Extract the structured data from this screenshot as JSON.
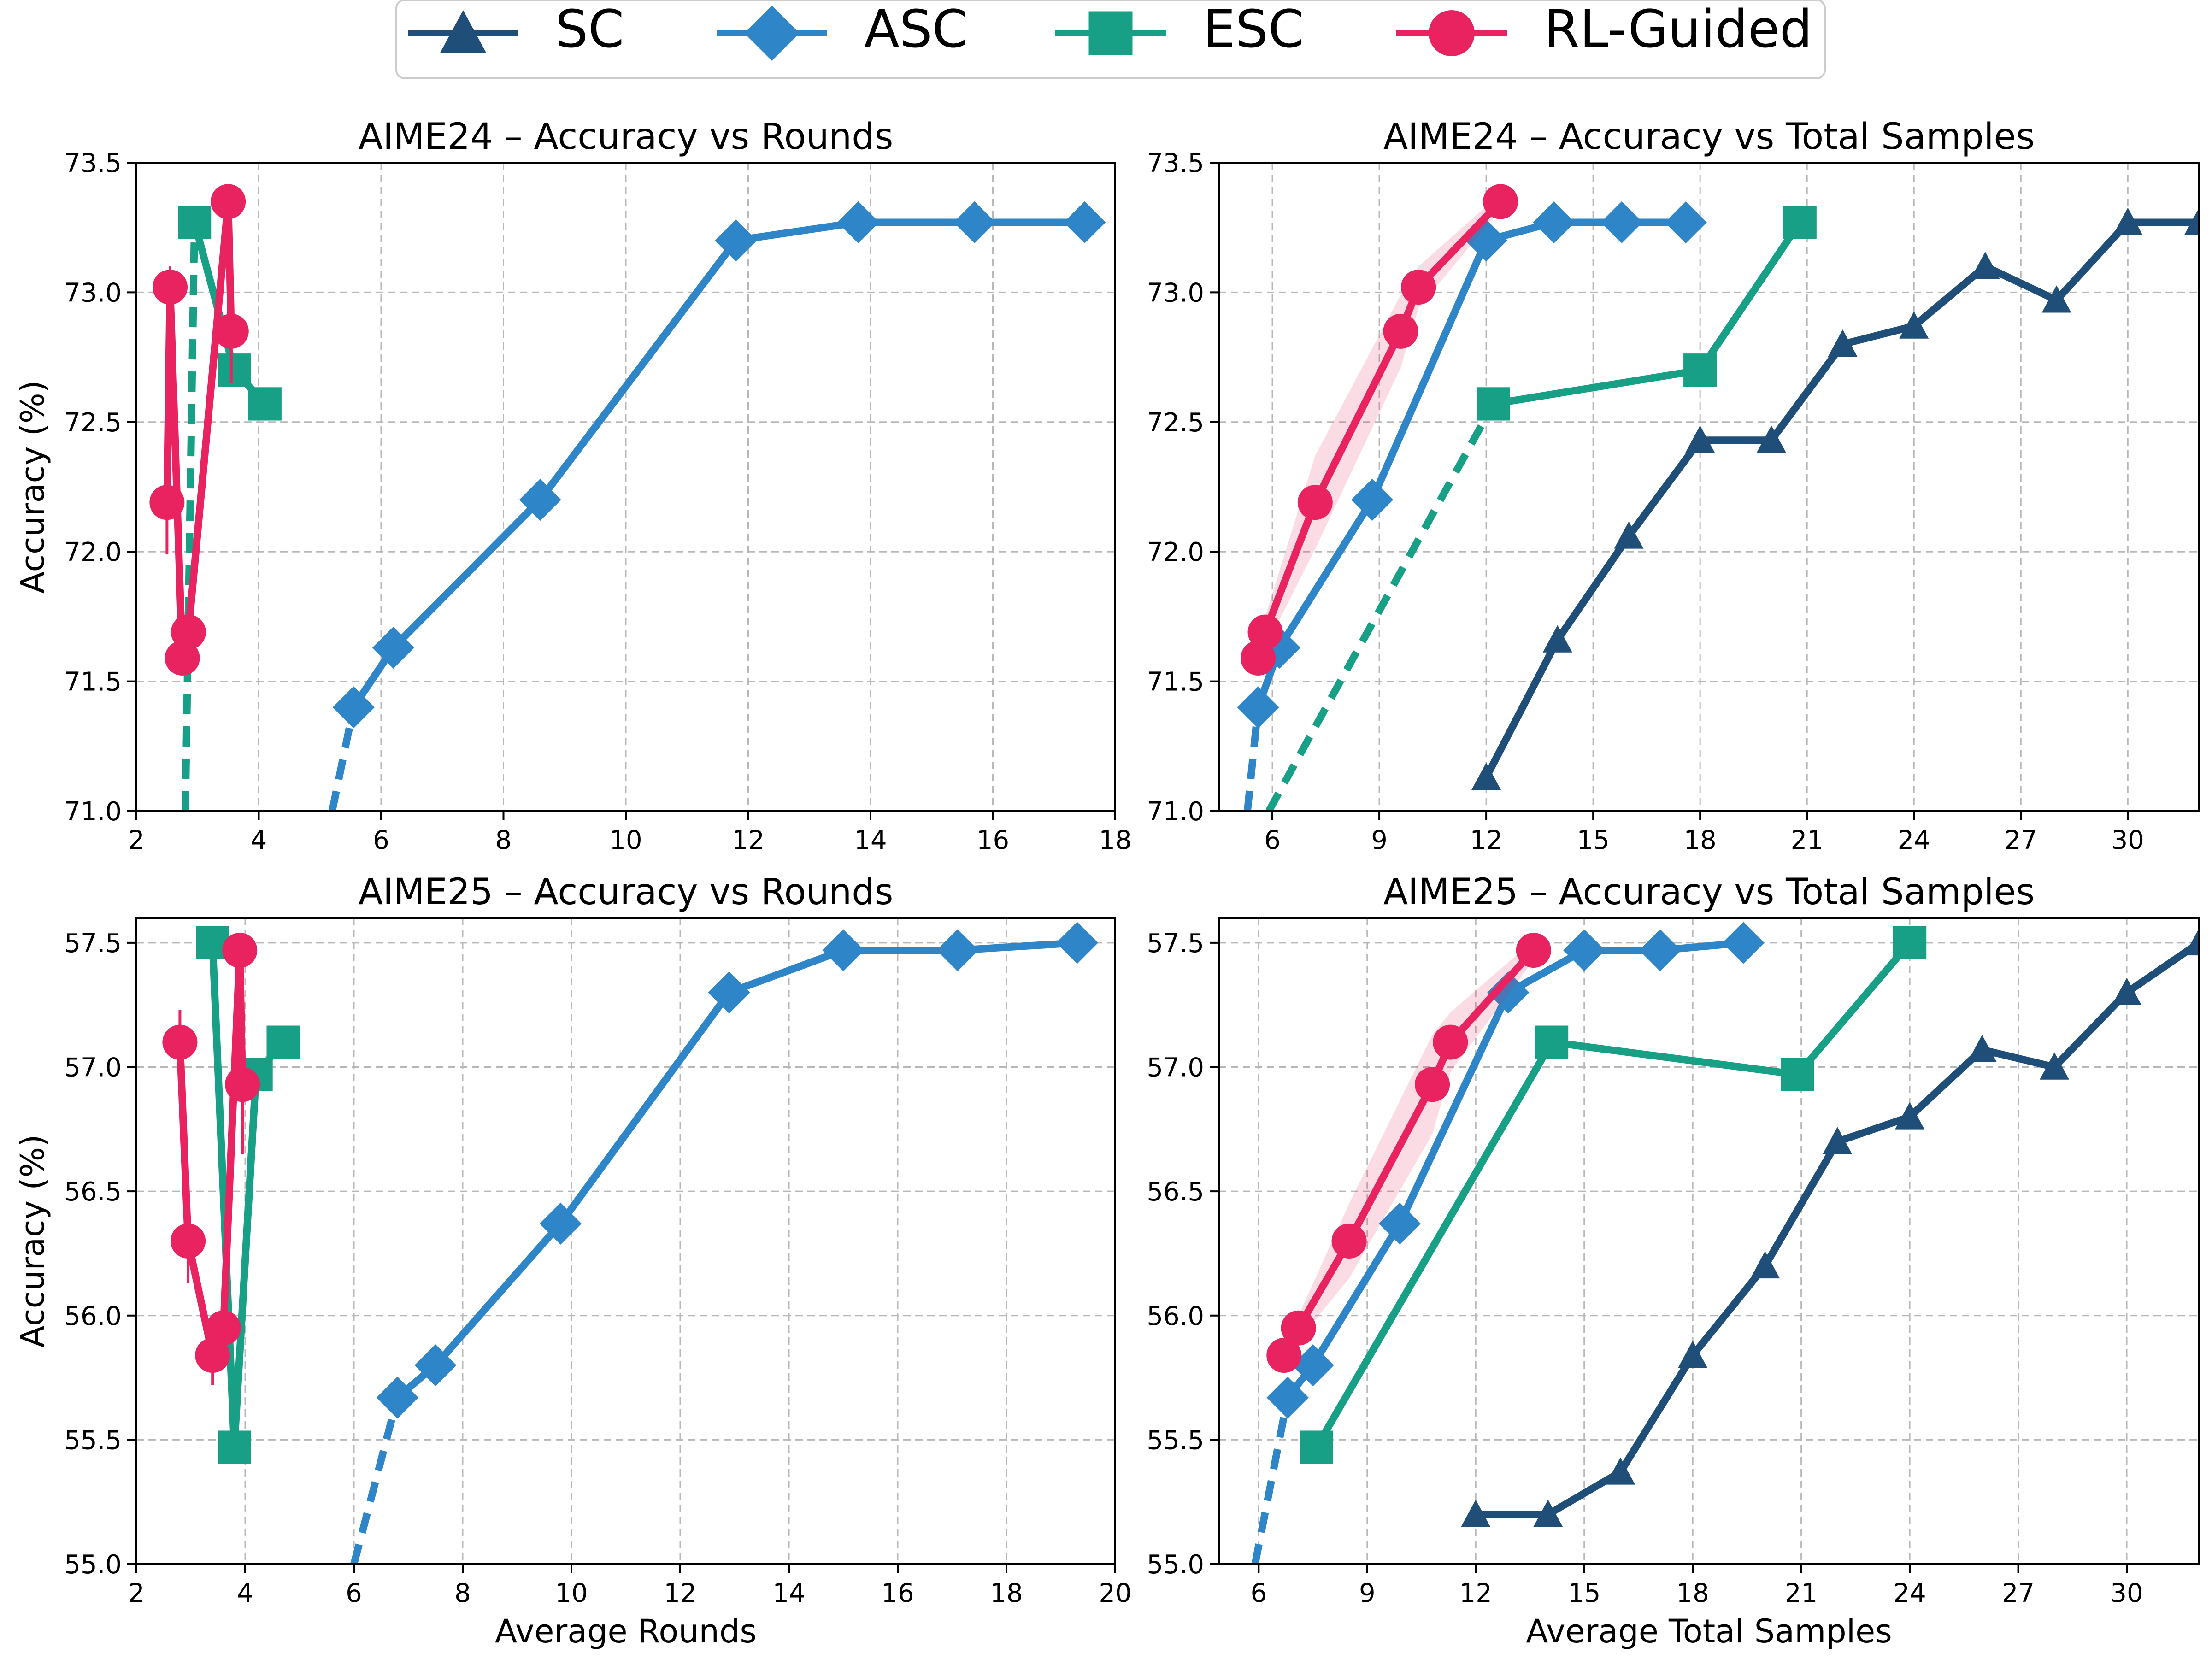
{
  "legend": {
    "position": "top-center",
    "items": [
      {
        "key": "SC",
        "label": "SC",
        "color": "#1f4e79",
        "marker": "triangle"
      },
      {
        "key": "ASC",
        "label": "ASC",
        "color": "#2e86c8",
        "marker": "diamond"
      },
      {
        "key": "ESC",
        "label": "ESC",
        "color": "#17a085",
        "marker": "square"
      },
      {
        "key": "RL",
        "label": "RL-Guided",
        "color": "#e8235f",
        "marker": "circle"
      }
    ]
  },
  "chart_data": [
    {
      "type": "line",
      "title": "AIME24 – Accuracy vs Rounds",
      "xlabel": "",
      "ylabel": "Accuracy (%)",
      "xlim": [
        2,
        18
      ],
      "ylim": [
        71.0,
        73.5
      ],
      "xticks": [
        "2",
        "4",
        "6",
        "8",
        "10",
        "12",
        "14",
        "16",
        "18"
      ],
      "yticks": [
        "71.0",
        "71.5",
        "72.0",
        "72.5",
        "73.0",
        "73.5"
      ],
      "grid": true,
      "series": [
        {
          "name": "SC",
          "points": []
        },
        {
          "name": "ASC",
          "points": [
            [
              5.55,
              71.4
            ],
            [
              6.2,
              71.63
            ],
            [
              8.6,
              72.2
            ],
            [
              11.8,
              73.2
            ],
            [
              13.8,
              73.27
            ],
            [
              15.7,
              73.27
            ],
            [
              17.5,
              73.27
            ]
          ],
          "dashed_lead": [
            [
              5.2,
              71.0
            ],
            [
              5.55,
              71.4
            ]
          ]
        },
        {
          "name": "ESC",
          "points": [
            [
              2.95,
              73.27
            ],
            [
              3.6,
              72.7
            ],
            [
              4.1,
              72.57
            ]
          ],
          "dashed_lead": [
            [
              2.8,
              71.0
            ],
            [
              2.95,
              73.27
            ]
          ]
        },
        {
          "name": "RL-Guided",
          "points": [
            [
              2.5,
              72.19
            ],
            [
              2.55,
              73.02
            ],
            [
              2.75,
              71.59
            ],
            [
              2.85,
              71.69
            ],
            [
              3.5,
              73.35
            ],
            [
              3.55,
              72.85
            ]
          ],
          "errors": [
            0.2,
            0.08,
            0.02,
            0.06,
            0.04,
            0.2
          ]
        }
      ]
    },
    {
      "type": "line",
      "title": "AIME24 – Accuracy vs Total Samples",
      "xlabel": "",
      "ylabel": "",
      "xlim": [
        4.5,
        32
      ],
      "ylim": [
        71.0,
        73.5
      ],
      "xticks": [
        "6",
        "9",
        "12",
        "15",
        "18",
        "21",
        "24",
        "27",
        "30"
      ],
      "yticks": [
        "71.0",
        "71.5",
        "72.0",
        "72.5",
        "73.0",
        "73.5"
      ],
      "grid": true,
      "series": [
        {
          "name": "SC",
          "points": [
            [
              12,
              71.13
            ],
            [
              14,
              71.66
            ],
            [
              16,
              72.06
            ],
            [
              18,
              72.43
            ],
            [
              20,
              72.43
            ],
            [
              22,
              72.8
            ],
            [
              24,
              72.87
            ],
            [
              26,
              73.1
            ],
            [
              28,
              72.97
            ],
            [
              30,
              73.27
            ],
            [
              32,
              73.27
            ]
          ]
        },
        {
          "name": "ASC",
          "points": [
            [
              5.6,
              71.4
            ],
            [
              6.2,
              71.63
            ],
            [
              8.8,
              72.2
            ],
            [
              12.0,
              73.2
            ],
            [
              13.9,
              73.27
            ],
            [
              15.8,
              73.27
            ],
            [
              17.6,
              73.27
            ]
          ],
          "dashed_lead": [
            [
              5.3,
              71.0
            ],
            [
              5.6,
              71.4
            ]
          ]
        },
        {
          "name": "ESC",
          "points": [
            [
              12.2,
              72.57
            ],
            [
              18.0,
              72.7
            ],
            [
              20.8,
              73.27
            ]
          ],
          "dashed_lead": [
            [
              5.9,
              71.0
            ],
            [
              12.2,
              72.57
            ]
          ]
        },
        {
          "name": "RL-Guided",
          "points": [
            [
              5.6,
              71.59
            ],
            [
              5.8,
              71.69
            ],
            [
              7.2,
              72.19
            ],
            [
              9.6,
              72.85
            ],
            [
              10.1,
              73.02
            ],
            [
              12.4,
              73.35
            ]
          ],
          "band": [
            0.04,
            0.06,
            0.18,
            0.14,
            0.08,
            0.03
          ]
        }
      ]
    },
    {
      "type": "line",
      "title": "AIME25 – Accuracy vs Rounds",
      "xlabel": "Average Rounds",
      "ylabel": "Accuracy (%)",
      "xlim": [
        2,
        20
      ],
      "ylim": [
        55.0,
        57.6
      ],
      "xticks": [
        "2",
        "4",
        "6",
        "8",
        "10",
        "12",
        "14",
        "16",
        "18",
        "20"
      ],
      "yticks": [
        "55.0",
        "55.5",
        "56.0",
        "56.5",
        "57.0",
        "57.5"
      ],
      "grid": true,
      "series": [
        {
          "name": "SC",
          "points": []
        },
        {
          "name": "ASC",
          "points": [
            [
              6.8,
              55.67
            ],
            [
              7.5,
              55.8
            ],
            [
              9.8,
              56.37
            ],
            [
              12.9,
              57.3
            ],
            [
              15.0,
              57.47
            ],
            [
              17.1,
              57.47
            ],
            [
              19.3,
              57.5
            ]
          ],
          "dashed_lead": [
            [
              6.0,
              55.0
            ],
            [
              6.8,
              55.67
            ]
          ]
        },
        {
          "name": "ESC",
          "points": [
            [
              3.4,
              57.5
            ],
            [
              3.8,
              55.47
            ],
            [
              4.2,
              56.97
            ],
            [
              4.7,
              57.1
            ]
          ]
        },
        {
          "name": "RL-Guided",
          "points": [
            [
              2.8,
              57.1
            ],
            [
              2.95,
              56.3
            ],
            [
              3.4,
              55.84
            ],
            [
              3.6,
              55.95
            ],
            [
              3.9,
              57.47
            ],
            [
              3.95,
              56.93
            ]
          ],
          "errors": [
            0.13,
            0.17,
            0.12,
            0.05,
            0.05,
            0.28
          ]
        }
      ]
    },
    {
      "type": "line",
      "title": "AIME25 – Accuracy vs Total Samples",
      "xlabel": "Average Total Samples",
      "ylabel": "",
      "xlim": [
        4.9,
        32
      ],
      "ylim": [
        55.0,
        57.6
      ],
      "xticks": [
        "6",
        "9",
        "12",
        "15",
        "18",
        "21",
        "24",
        "27",
        "30"
      ],
      "yticks": [
        "55.0",
        "55.5",
        "56.0",
        "56.5",
        "57.0",
        "57.5"
      ],
      "grid": true,
      "series": [
        {
          "name": "SC",
          "points": [
            [
              12,
              55.2
            ],
            [
              14,
              55.2
            ],
            [
              16,
              55.37
            ],
            [
              18,
              55.84
            ],
            [
              20,
              56.2
            ],
            [
              22,
              56.7
            ],
            [
              24,
              56.8
            ],
            [
              26,
              57.07
            ],
            [
              28,
              57.0
            ],
            [
              30,
              57.3
            ],
            [
              32,
              57.5
            ]
          ]
        },
        {
          "name": "ASC",
          "points": [
            [
              6.8,
              55.67
            ],
            [
              7.5,
              55.8
            ],
            [
              9.9,
              56.37
            ],
            [
              12.9,
              57.3
            ],
            [
              15.0,
              57.47
            ],
            [
              17.1,
              57.47
            ],
            [
              19.4,
              57.5
            ]
          ],
          "dashed_lead": [
            [
              5.9,
              55.0
            ],
            [
              6.8,
              55.67
            ]
          ]
        },
        {
          "name": "ESC",
          "points": [
            [
              7.6,
              55.47
            ],
            [
              14.1,
              57.1
            ],
            [
              20.9,
              56.97
            ],
            [
              24.0,
              57.5
            ]
          ]
        },
        {
          "name": "RL-Guided",
          "points": [
            [
              6.7,
              55.84
            ],
            [
              7.1,
              55.95
            ],
            [
              8.5,
              56.3
            ],
            [
              10.8,
              56.93
            ],
            [
              11.3,
              57.1
            ],
            [
              13.6,
              57.47
            ]
          ],
          "band": [
            0.04,
            0.05,
            0.15,
            0.2,
            0.12,
            0.04
          ]
        }
      ]
    }
  ]
}
